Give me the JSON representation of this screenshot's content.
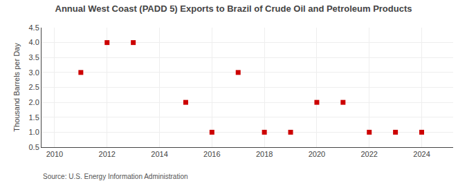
{
  "chart_data": {
    "type": "scatter",
    "title": "Annual West Coast (PADD 5) Exports to Brazil of Crude Oil and Petroleum Products",
    "y_label": "Thousand Barrels per Day",
    "annotations": [
      "Source: U.S. Energy Information Administration"
    ],
    "x": [
      2011,
      2012,
      2013,
      2015,
      2016,
      2017,
      2018,
      2019,
      2020,
      2021,
      2022,
      2023,
      2024
    ],
    "values": [
      3.0,
      4.0,
      4.0,
      2.0,
      1.0,
      3.0,
      1.0,
      1.0,
      2.0,
      2.0,
      1.0,
      1.0,
      1.0
    ],
    "color": "#cc0000",
    "marker": "square",
    "xlim": [
      2009.5,
      2025.2
    ],
    "ylim": [
      0.5,
      4.5
    ],
    "xticks": [
      2010,
      2012,
      2014,
      2016,
      2018,
      2020,
      2022,
      2024
    ],
    "yticks": [
      0.5,
      {
        "value": 1.0,
        "label": "1.0"
      },
      1.5,
      {
        "value": 2.0,
        "label": "2.0"
      },
      2.5,
      {
        "value": 3.0,
        "label": "3.0"
      },
      3.5,
      {
        "value": 4.0,
        "label": "4.0"
      },
      4.5
    ],
    "grid": true
  }
}
